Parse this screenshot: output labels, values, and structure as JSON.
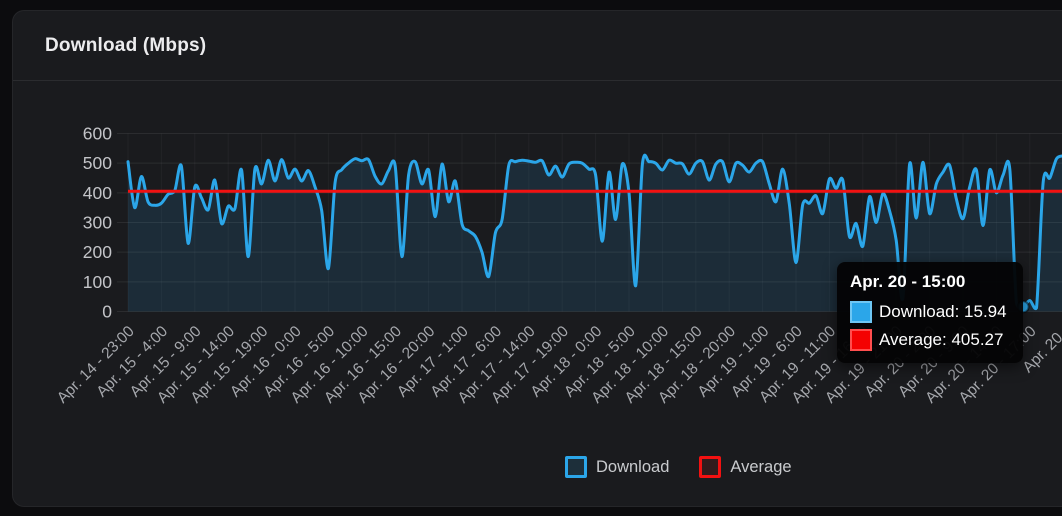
{
  "card": {
    "title": "Download (Mbps)",
    "background": "#1a1b1e"
  },
  "chart_data": {
    "type": "line",
    "title": "Download (Mbps)",
    "xlabel": "",
    "ylabel": "",
    "ylim": [
      0,
      600
    ],
    "yticks": [
      0,
      100,
      200,
      300,
      400,
      500,
      600
    ],
    "grid": "on",
    "legend_position": "bottom",
    "x_tick_labels": [
      "Apr. 14 - 23:00",
      "Apr. 15 - 4:00",
      "Apr. 15 - 9:00",
      "Apr. 15 - 14:00",
      "Apr. 15 - 19:00",
      "Apr. 16 - 0:00",
      "Apr. 16 - 5:00",
      "Apr. 16 - 10:00",
      "Apr. 16 - 15:00",
      "Apr. 16 - 20:00",
      "Apr. 17 - 1:00",
      "Apr. 17 - 6:00",
      "Apr. 17 - 14:00",
      "Apr. 17 - 19:00",
      "Apr. 18 - 0:00",
      "Apr. 18 - 5:00",
      "Apr. 18 - 10:00",
      "Apr. 18 - 15:00",
      "Apr. 18 - 20:00",
      "Apr. 19 - 1:00",
      "Apr. 19 - 6:00",
      "Apr. 19 - 11:00",
      "Apr. 19 - 16:00",
      "Apr. 19 - 21:00",
      "Apr. 20 - 2:00",
      "Apr. 20 - 9:00",
      "Apr. 20 - 14:00",
      "Apr. 20 - 17:00",
      "Apr. 20 -"
    ],
    "ticks_every_n_points": 5,
    "series": [
      {
        "name": "Download",
        "style": "line-area",
        "color": "#2ba6e9",
        "fill": "rgba(43,166,233,0.13)",
        "values": [
          505,
          350,
          455,
          370,
          358,
          365,
          395,
          408,
          490,
          230,
          420,
          383,
          343,
          443,
          297,
          355,
          347,
          477,
          185,
          480,
          430,
          510,
          440,
          512,
          450,
          480,
          440,
          475,
          420,
          340,
          145,
          435,
          478,
          500,
          515,
          508,
          512,
          455,
          430,
          475,
          490,
          185,
          460,
          505,
          430,
          477,
          320,
          497,
          370,
          440,
          295,
          272,
          253,
          200,
          118,
          265,
          310,
          493,
          505,
          510,
          507,
          503,
          508,
          460,
          490,
          453,
          497,
          503,
          500,
          480,
          460,
          237,
          470,
          310,
          497,
          400,
          87,
          497,
          505,
          500,
          477,
          510,
          500,
          498,
          463,
          500,
          505,
          443,
          497,
          505,
          437,
          500,
          493,
          470,
          500,
          505,
          430,
          370,
          480,
          363,
          165,
          360,
          365,
          390,
          330,
          447,
          415,
          443,
          253,
          297,
          220,
          387,
          300,
          397,
          340,
          240,
          45,
          497,
          315,
          503,
          330,
          430,
          470,
          493,
          380,
          313,
          420,
          477,
          290,
          477,
          400,
          460,
          480,
          30,
          15.94,
          37,
          12,
          437,
          450,
          515,
          525
        ]
      },
      {
        "name": "Average",
        "style": "hline",
        "color": "#f21111",
        "value": 405.27
      }
    ],
    "hover_point": {
      "index": 134,
      "value": 15.94
    }
  },
  "tooltip": {
    "title": "Apr. 20 - 15:00",
    "rows": [
      {
        "text": "Download: 15.94",
        "color": "#2ba6e9",
        "border": "#6ec6f3"
      },
      {
        "text": "Average: 405.27",
        "color": "#f40202",
        "border": "#ff4e4e"
      }
    ]
  },
  "legend": {
    "items": [
      {
        "label": "Download",
        "color": "#2ba6e9",
        "bg": "#1d2f3a"
      },
      {
        "label": "Average",
        "color": "#f21111",
        "bg": "#311c1d"
      }
    ]
  },
  "axis": {
    "y_tick_color": "#c3c4c8",
    "x_tick_color": "#a6a8ad",
    "grid_color": "rgba(255,255,255,0.08)"
  }
}
